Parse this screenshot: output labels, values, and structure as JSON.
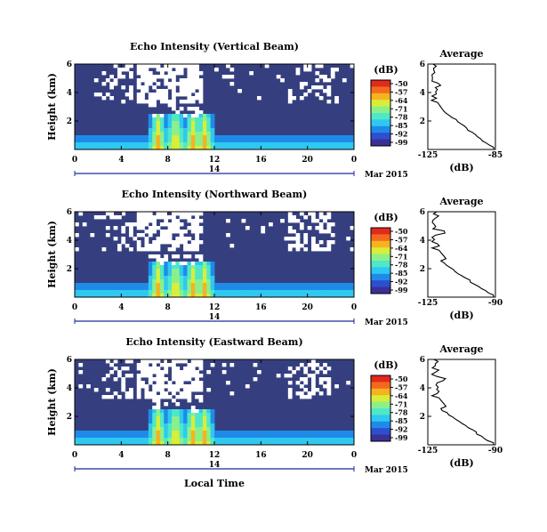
{
  "chart_data": [
    {
      "type": "heatmap",
      "title": "Echo Intensity (Vertical Beam)",
      "ylabel": "Height (km)",
      "y_ticks": [
        "6",
        "4",
        "2"
      ],
      "x_ticks": [
        "0",
        "4",
        "8",
        "12",
        "16",
        "20",
        "0"
      ],
      "day_label": "14",
      "date_label": "Mar 2015",
      "colorbar": {
        "unit": "(dB)",
        "ticks": [
          "-50",
          "-57",
          "-64",
          "-71",
          "-78",
          "-85",
          "-92",
          "-99"
        ],
        "range": [
          -99,
          -50
        ]
      },
      "precip_bursts_hours": [
        7,
        8.5,
        10,
        11
      ],
      "average": {
        "title": "Average",
        "xlabel": "(dB)",
        "x_ticks": [
          "-125",
          "-85"
        ],
        "y_ticks": [
          "6",
          "4",
          "2"
        ],
        "xlim": [
          -125,
          -85
        ],
        "ylim": [
          0,
          6
        ]
      }
    },
    {
      "type": "heatmap",
      "title": "Echo Intensity (Northward Beam)",
      "ylabel": "Height (km)",
      "y_ticks": [
        "6",
        "4",
        "2"
      ],
      "x_ticks": [
        "0",
        "4",
        "8",
        "12",
        "16",
        "20",
        "0"
      ],
      "day_label": "14",
      "date_label": "Mar 2015",
      "colorbar": {
        "unit": "(dB)",
        "ticks": [
          "-50",
          "-57",
          "-64",
          "-71",
          "-78",
          "-85",
          "-92",
          "-99"
        ],
        "range": [
          -99,
          -50
        ]
      },
      "precip_bursts_hours": [
        7,
        8.5,
        10,
        11
      ],
      "average": {
        "title": "Average",
        "xlabel": "(dB)",
        "x_ticks": [
          "-125",
          "-90"
        ],
        "y_ticks": [
          "6",
          "4",
          "2"
        ],
        "xlim": [
          -125,
          -90
        ],
        "ylim": [
          0,
          6
        ]
      }
    },
    {
      "type": "heatmap",
      "title": "Echo Intensity (Eastward Beam)",
      "ylabel": "Height (km)",
      "y_ticks": [
        "6",
        "4",
        "2"
      ],
      "x_ticks": [
        "0",
        "4",
        "8",
        "12",
        "16",
        "20",
        "0"
      ],
      "day_label": "14",
      "date_label": "Mar 2015",
      "xlabel": "Local Time",
      "colorbar": {
        "unit": "(dB)",
        "ticks": [
          "-50",
          "-57",
          "-64",
          "-71",
          "-78",
          "-85",
          "-92",
          "-99"
        ],
        "range": [
          -99,
          -50
        ]
      },
      "precip_bursts_hours": [
        7,
        8.5,
        10,
        11
      ],
      "average": {
        "title": "Average",
        "xlabel": "(dB)",
        "x_ticks": [
          "-125",
          "-90"
        ],
        "y_ticks": [
          "6",
          "4",
          "2"
        ],
        "xlim": [
          -125,
          -90
        ],
        "ylim": [
          0,
          6
        ]
      }
    }
  ],
  "colors": {
    "background_echo": "#353f80",
    "gap": "#ffffff",
    "colormap": [
      "#3a3095",
      "#2d4fcf",
      "#1f8be8",
      "#2fc8f0",
      "#4ee8c8",
      "#8cf08a",
      "#d8ee3a",
      "#f7b21f",
      "#f36a1e",
      "#e12a1b"
    ]
  }
}
